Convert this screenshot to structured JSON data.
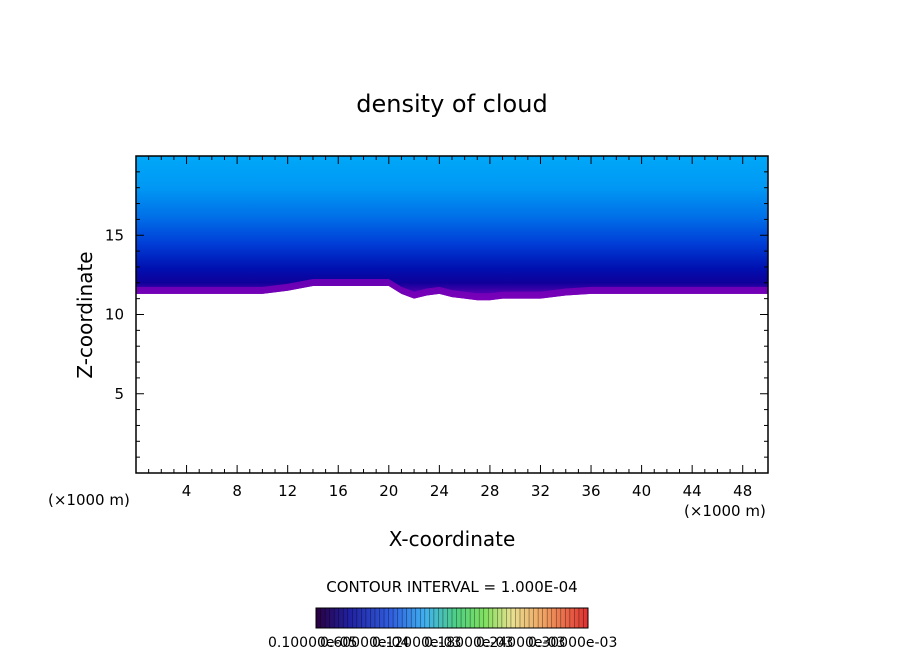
{
  "chart_data": {
    "type": "heatmap",
    "title": "density of cloud",
    "xlabel": "X-coordinate",
    "ylabel": "Z-coordinate",
    "x_unit_label": "(×1000 m)",
    "y_unit_label": "(×1000 m)",
    "xlim": [
      0,
      50
    ],
    "ylim": [
      0,
      20
    ],
    "xticks": [
      4,
      8,
      12,
      16,
      20,
      24,
      28,
      32,
      36,
      40,
      44,
      48
    ],
    "yticks": [
      5,
      10,
      15
    ],
    "colorbar_title": "CONTOUR INTERVAL = 1.000E-04",
    "colorbar_labels": [
      "0.10000e-05",
      "0.60000e-04",
      "0.12000e-03",
      "0.18000e-03",
      "0.24000e-03",
      "0.30000e-03"
    ],
    "cloud_base_profile": {
      "x": [
        0,
        2,
        4,
        6,
        8,
        10,
        12,
        14,
        16,
        18,
        20,
        21,
        22,
        23,
        24,
        25,
        26,
        27,
        28,
        29,
        30,
        32,
        34,
        36,
        38,
        40,
        42,
        44,
        46,
        48,
        50
      ],
      "z": [
        11.3,
        11.3,
        11.3,
        11.3,
        11.3,
        11.3,
        11.5,
        11.8,
        11.8,
        11.8,
        11.8,
        11.3,
        11.0,
        11.2,
        11.3,
        11.1,
        11.0,
        10.9,
        10.9,
        11.0,
        11.0,
        11.0,
        11.2,
        11.3,
        11.3,
        11.3,
        11.3,
        11.3,
        11.3,
        11.3,
        11.3
      ]
    },
    "cloud_top_z": 20,
    "colors": {
      "low": "#7a00b8",
      "mid_low": "#0000a0",
      "mid": "#0040e0",
      "mid_high": "#0088f0",
      "high": "#00a8f8"
    }
  }
}
